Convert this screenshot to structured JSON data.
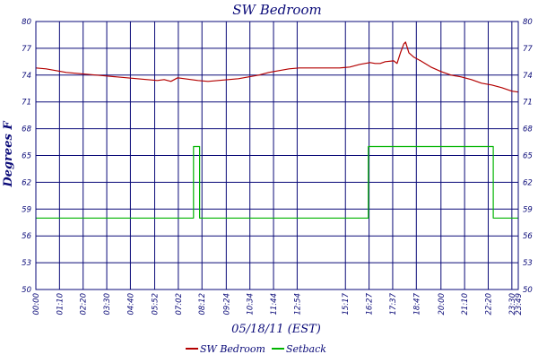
{
  "chart_data": {
    "type": "line",
    "title": "SW Bedroom",
    "xlabel": "05/18/11 (EST)",
    "ylabel": "Degrees F",
    "ylim": [
      50,
      80
    ],
    "yticks": [
      50,
      53,
      56,
      59,
      62,
      65,
      68,
      71,
      74,
      77,
      80
    ],
    "x_range_minutes": [
      0,
      1429
    ],
    "xticks": [
      "00:00",
      "01:10",
      "02:20",
      "03:30",
      "04:40",
      "05:52",
      "07:02",
      "08:12",
      "09:24",
      "10:34",
      "11:44",
      "12:54",
      "15:17",
      "16:27",
      "17:37",
      "18:47",
      "20:00",
      "21:10",
      "22:20",
      "23:30",
      "23:49"
    ],
    "grid": true,
    "legend_position": "bottom",
    "colors": {
      "title": "#0a0a78",
      "grid": "#0a0a78",
      "series_temp": "#b40000",
      "series_setback": "#00b400"
    },
    "series": [
      {
        "name": "SW Bedroom",
        "color": "#b40000",
        "step": false,
        "points": [
          [
            "00:00",
            74.8
          ],
          [
            "00:30",
            74.7
          ],
          [
            "01:00",
            74.5
          ],
          [
            "01:30",
            74.3
          ],
          [
            "02:00",
            74.2
          ],
          [
            "02:30",
            74.1
          ],
          [
            "03:00",
            74.0
          ],
          [
            "03:30",
            73.9
          ],
          [
            "04:00",
            73.8
          ],
          [
            "04:30",
            73.7
          ],
          [
            "05:00",
            73.6
          ],
          [
            "05:30",
            73.5
          ],
          [
            "06:00",
            73.4
          ],
          [
            "06:20",
            73.5
          ],
          [
            "06:40",
            73.3
          ],
          [
            "07:00",
            73.7
          ],
          [
            "07:20",
            73.6
          ],
          [
            "08:00",
            73.4
          ],
          [
            "08:30",
            73.3
          ],
          [
            "09:00",
            73.4
          ],
          [
            "09:30",
            73.5
          ],
          [
            "10:00",
            73.6
          ],
          [
            "10:30",
            73.8
          ],
          [
            "11:00",
            74.0
          ],
          [
            "11:30",
            74.3
          ],
          [
            "12:00",
            74.5
          ],
          [
            "12:30",
            74.7
          ],
          [
            "13:00",
            74.8
          ],
          [
            "13:30",
            74.8
          ],
          [
            "14:00",
            74.8
          ],
          [
            "14:30",
            74.8
          ],
          [
            "15:00",
            74.8
          ],
          [
            "15:30",
            74.9
          ],
          [
            "16:00",
            75.2
          ],
          [
            "16:30",
            75.4
          ],
          [
            "16:45",
            75.3
          ],
          [
            "17:00",
            75.3
          ],
          [
            "17:15",
            75.5
          ],
          [
            "17:40",
            75.6
          ],
          [
            "17:50",
            75.3
          ],
          [
            "18:00",
            76.5
          ],
          [
            "18:10",
            77.5
          ],
          [
            "18:15",
            77.7
          ],
          [
            "18:25",
            76.5
          ],
          [
            "18:40",
            76.0
          ],
          [
            "19:00",
            75.6
          ],
          [
            "19:30",
            74.9
          ],
          [
            "20:00",
            74.4
          ],
          [
            "20:30",
            74.0
          ],
          [
            "21:00",
            73.8
          ],
          [
            "21:30",
            73.5
          ],
          [
            "22:00",
            73.1
          ],
          [
            "22:30",
            72.9
          ],
          [
            "23:00",
            72.6
          ],
          [
            "23:30",
            72.2
          ],
          [
            "23:49",
            72.1
          ]
        ]
      },
      {
        "name": "Setback",
        "color": "#00b400",
        "step": true,
        "points": [
          [
            "00:00",
            58
          ],
          [
            "07:47",
            58
          ],
          [
            "07:47",
            66
          ],
          [
            "08:05",
            66
          ],
          [
            "08:05",
            58
          ],
          [
            "16:25",
            58
          ],
          [
            "16:25",
            66
          ],
          [
            "22:35",
            66
          ],
          [
            "22:35",
            58
          ],
          [
            "23:49",
            58
          ]
        ]
      }
    ]
  }
}
